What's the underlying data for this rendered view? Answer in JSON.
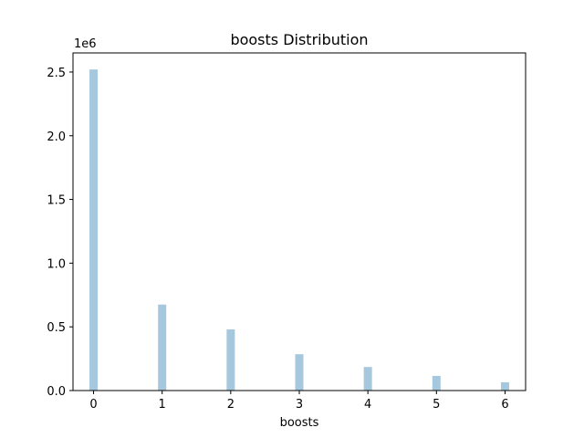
{
  "chart_data": {
    "type": "bar",
    "title": "boosts  Distribution",
    "xlabel": "boosts",
    "ylabel": "",
    "y_multiplier_label": "1e6",
    "x": [
      0,
      1,
      2,
      3,
      4,
      5,
      6
    ],
    "values": [
      2520000,
      675000,
      480000,
      285000,
      185000,
      115000,
      65000
    ],
    "xlim": [
      -0.3,
      6.3
    ],
    "ylim": [
      0,
      2650000
    ],
    "x_ticks": [
      0,
      1,
      2,
      3,
      4,
      5,
      6
    ],
    "x_tick_labels": [
      "0",
      "1",
      "2",
      "3",
      "4",
      "5",
      "6"
    ],
    "y_ticks": [
      0,
      500000,
      1000000,
      1500000,
      2000000,
      2500000
    ],
    "y_tick_labels": [
      "0.0",
      "0.5",
      "1.0",
      "1.5",
      "2.0",
      "2.5"
    ],
    "bar_color": "#a6c8de",
    "grid": false,
    "legend": "none"
  }
}
